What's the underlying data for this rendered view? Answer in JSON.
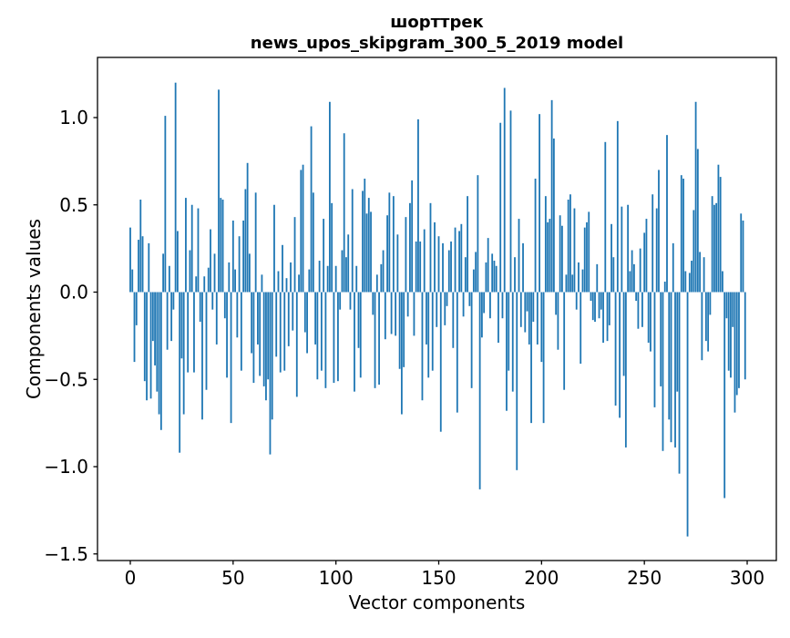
{
  "title": {
    "line1": "шорттрек",
    "line2": "news_upos_skipgram_300_5_2019 model"
  },
  "axes": {
    "xlabel": "Vector components",
    "ylabel": "Components values"
  },
  "chart_data": {
    "type": "bar",
    "title": "шорттрек\nnews_upos_skipgram_300_5_2019 model",
    "xlabel": "Vector components",
    "ylabel": "Components values",
    "x_is_index": true,
    "n_bars": 300,
    "xlim": [
      -16,
      315.4
    ],
    "ylim": [
      -1.54,
      1.34
    ],
    "xticks": [
      0,
      50,
      100,
      150,
      200,
      250,
      300
    ],
    "xtick_labels": [
      "0",
      "50",
      "100",
      "150",
      "200",
      "250",
      "300"
    ],
    "yticks": [
      1.0,
      0.5,
      0.0,
      -0.5,
      -1.0,
      -1.5
    ],
    "ytick_labels": [
      "1.0",
      "0.5",
      "0.0",
      "−0.5",
      "−1.0",
      "−1.5"
    ],
    "grid": false,
    "legend": null,
    "bar_color": "#1f77b4",
    "values": [
      0.37,
      0.13,
      -0.4,
      -0.19,
      0.3,
      0.53,
      0.32,
      -0.51,
      -0.62,
      0.28,
      -0.61,
      -0.28,
      -0.42,
      -0.57,
      -0.7,
      -0.79,
      0.22,
      1.01,
      -0.33,
      0.15,
      -0.28,
      -0.1,
      1.2,
      0.35,
      -0.92,
      -0.38,
      -0.7,
      0.54,
      -0.46,
      0.24,
      0.5,
      -0.46,
      0.09,
      0.48,
      -0.17,
      -0.73,
      0.09,
      -0.56,
      0.14,
      0.36,
      -0.1,
      0.22,
      -0.3,
      1.16,
      0.54,
      0.53,
      -0.15,
      -0.49,
      0.17,
      -0.75,
      0.41,
      0.13,
      -0.26,
      0.32,
      -0.45,
      0.41,
      0.59,
      0.74,
      0.22,
      -0.35,
      -0.52,
      0.57,
      -0.3,
      -0.48,
      0.1,
      -0.54,
      -0.62,
      -0.5,
      -0.93,
      -0.73,
      0.5,
      -0.37,
      0.12,
      -0.46,
      0.27,
      -0.45,
      0.08,
      -0.31,
      0.17,
      -0.22,
      0.43,
      -0.6,
      0.1,
      0.7,
      0.73,
      -0.23,
      -0.35,
      0.13,
      0.95,
      0.57,
      -0.3,
      -0.5,
      0.18,
      -0.45,
      0.42,
      -0.55,
      0.15,
      1.09,
      0.51,
      -0.52,
      0.15,
      -0.51,
      -0.1,
      0.24,
      0.91,
      0.2,
      0.33,
      -0.1,
      0.59,
      -0.57,
      0.15,
      -0.32,
      -0.49,
      0.58,
      0.65,
      0.45,
      0.54,
      0.46,
      -0.13,
      -0.55,
      0.1,
      -0.53,
      0.16,
      0.24,
      -0.27,
      0.44,
      0.57,
      -0.24,
      0.55,
      -0.25,
      0.33,
      -0.44,
      -0.7,
      -0.43,
      0.43,
      -0.14,
      0.51,
      0.64,
      -0.25,
      0.29,
      0.99,
      0.29,
      -0.62,
      0.36,
      -0.3,
      -0.49,
      0.51,
      -0.45,
      0.4,
      -0.2,
      0.32,
      -0.8,
      0.28,
      -0.19,
      -0.08,
      0.24,
      0.29,
      -0.32,
      0.37,
      -0.69,
      0.35,
      0.39,
      -0.14,
      0.2,
      0.55,
      -0.08,
      -0.55,
      0.13,
      0.23,
      0.67,
      -1.13,
      -0.26,
      -0.12,
      0.17,
      0.31,
      -0.15,
      0.22,
      0.18,
      0.15,
      -0.29,
      0.97,
      -0.15,
      1.17,
      -0.68,
      -0.45,
      1.04,
      -0.57,
      0.2,
      -1.02,
      0.42,
      -0.2,
      0.28,
      -0.23,
      -0.11,
      -0.3,
      -0.75,
      -0.17,
      0.65,
      -0.3,
      1.02,
      -0.4,
      -0.75,
      0.55,
      0.4,
      0.42,
      1.1,
      0.88,
      -0.13,
      -0.33,
      0.44,
      0.38,
      -0.56,
      0.1,
      0.53,
      0.56,
      0.1,
      0.48,
      -0.1,
      0.17,
      -0.41,
      0.13,
      0.37,
      0.4,
      0.46,
      -0.05,
      -0.16,
      -0.17,
      0.16,
      -0.15,
      -0.1,
      -0.29,
      0.86,
      -0.28,
      -0.19,
      0.39,
      0.2,
      -0.65,
      0.98,
      -0.72,
      0.49,
      -0.48,
      -0.89,
      0.5,
      0.12,
      0.24,
      0.16,
      -0.05,
      -0.21,
      0.25,
      -0.2,
      0.34,
      0.42,
      -0.29,
      -0.34,
      0.56,
      -0.66,
      0.48,
      0.7,
      -0.54,
      -0.91,
      0.06,
      0.9,
      -0.73,
      -0.86,
      0.28,
      -0.89,
      -0.57,
      -1.04,
      0.67,
      0.65,
      0.12,
      -1.4,
      0.11,
      0.18,
      0.47,
      1.09,
      0.82,
      0.23,
      -0.39,
      0.2,
      -0.28,
      -0.34,
      -0.13,
      0.55,
      0.5,
      0.51,
      0.73,
      0.66,
      0.12,
      -1.18,
      -0.15,
      -0.45,
      -0.49,
      -0.2,
      -0.69,
      -0.59,
      -0.55,
      0.45,
      0.41,
      -0.5
    ]
  }
}
